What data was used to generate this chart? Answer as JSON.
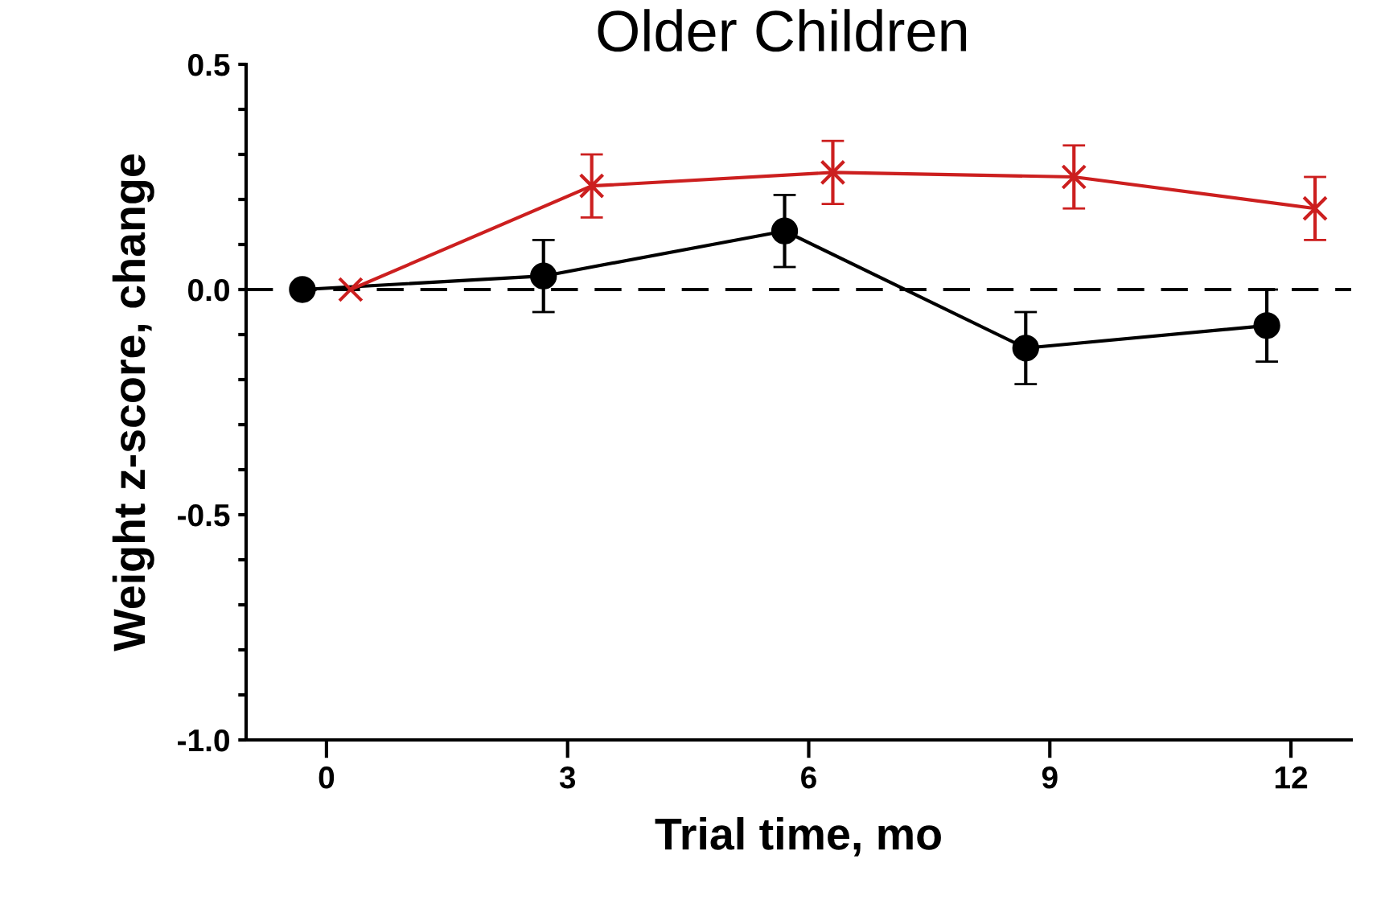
{
  "chart_data": {
    "type": "line",
    "title": "Older Children",
    "xlabel": "Trial time, mo",
    "ylabel": "Weight z-score, change",
    "xlim": [
      -1,
      12.75
    ],
    "xticks": [
      0,
      3,
      6,
      9,
      12
    ],
    "ylim": [
      -1.0,
      0.5
    ],
    "yticks": [
      {
        "value": -1.0,
        "label": "-1.0"
      },
      {
        "value": -0.9,
        "label": null
      },
      {
        "value": -0.8,
        "label": null
      },
      {
        "value": -0.7,
        "label": null
      },
      {
        "value": -0.6,
        "label": null
      },
      {
        "value": -0.5,
        "label": "-0.5"
      },
      {
        "value": -0.4,
        "label": null
      },
      {
        "value": -0.3,
        "label": null
      },
      {
        "value": -0.2,
        "label": null
      },
      {
        "value": -0.1,
        "label": null
      },
      {
        "value": 0.0,
        "label": "0.0"
      },
      {
        "value": 0.1,
        "label": null
      },
      {
        "value": 0.2,
        "label": null
      },
      {
        "value": 0.3,
        "label": null
      },
      {
        "value": 0.4,
        "label": null
      },
      {
        "value": 0.5,
        "label": "0.5"
      }
    ],
    "series": [
      {
        "color": "#000000",
        "marker": "circle",
        "x": [
          -0.3,
          2.7,
          5.7,
          8.7,
          11.7
        ],
        "values": [
          0,
          0.03,
          0.13,
          -0.13,
          -0.08
        ],
        "errors": [
          null,
          0.08,
          0.08,
          0.08,
          0.08
        ]
      },
      {
        "color": "#cc1f1f",
        "marker": "cross",
        "x": [
          0.3,
          3.3,
          6.3,
          9.3,
          12.3
        ],
        "values": [
          0,
          0.23,
          0.26,
          0.25,
          0.18
        ],
        "errors": [
          null,
          0.07,
          0.07,
          0.07,
          0.07
        ]
      }
    ],
    "ref_lines": [
      {
        "axis": "y",
        "value": 0,
        "color": "#000000",
        "line_style": "dashed"
      }
    ],
    "grid": false,
    "legend": false
  }
}
